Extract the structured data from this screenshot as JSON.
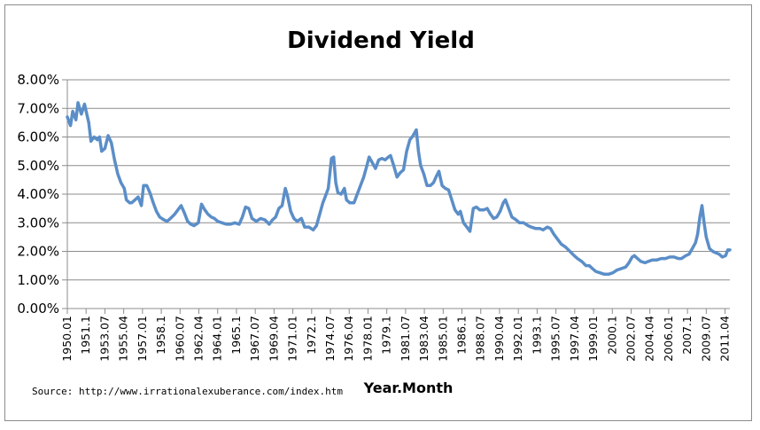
{
  "chart_data": {
    "type": "line",
    "title": "Dividend Yield",
    "xlabel": "Year.Month",
    "ylabel": "",
    "source": "Source: http://www.irrationalexuberance.com/index.htm",
    "ylim": [
      0,
      8
    ],
    "yticks": [
      0,
      1,
      2,
      3,
      4,
      5,
      6,
      7,
      8
    ],
    "ytick_labels": [
      "0.00%",
      "1.00%",
      "2.00%",
      "3.00%",
      "4.00%",
      "5.00%",
      "6.00%",
      "7.00%",
      "8.00%"
    ],
    "xlim": [
      1950.0,
      2011.7
    ],
    "xticks": [
      {
        "label": "1950.01",
        "x": 1950.0
      },
      {
        "label": "1951.1",
        "x": 1951.75
      },
      {
        "label": "1953.07",
        "x": 1953.5
      },
      {
        "label": "1955.04",
        "x": 1955.25
      },
      {
        "label": "1957.01",
        "x": 1957.0
      },
      {
        "label": "1958.1",
        "x": 1958.75
      },
      {
        "label": "1960.07",
        "x": 1960.5
      },
      {
        "label": "1962.04",
        "x": 1962.25
      },
      {
        "label": "1964.01",
        "x": 1964.0
      },
      {
        "label": "1965.1",
        "x": 1965.75
      },
      {
        "label": "1967.07",
        "x": 1967.5
      },
      {
        "label": "1969.04",
        "x": 1969.25
      },
      {
        "label": "1971.01",
        "x": 1971.0
      },
      {
        "label": "1972.1",
        "x": 1972.75
      },
      {
        "label": "1974.07",
        "x": 1974.5
      },
      {
        "label": "1976.04",
        "x": 1976.25
      },
      {
        "label": "1978.01",
        "x": 1978.0
      },
      {
        "label": "1979.1",
        "x": 1979.75
      },
      {
        "label": "1981.07",
        "x": 1981.5
      },
      {
        "label": "1983.04",
        "x": 1983.25
      },
      {
        "label": "1985.01",
        "x": 1985.0
      },
      {
        "label": "1986.1",
        "x": 1986.75
      },
      {
        "label": "1988.07",
        "x": 1988.5
      },
      {
        "label": "1990.04",
        "x": 1990.25
      },
      {
        "label": "1992.01",
        "x": 1992.0
      },
      {
        "label": "1993.1",
        "x": 1993.75
      },
      {
        "label": "1995.07",
        "x": 1995.5
      },
      {
        "label": "1997.04",
        "x": 1997.25
      },
      {
        "label": "1999.01",
        "x": 1999.0
      },
      {
        "label": "2000.1",
        "x": 2000.75
      },
      {
        "label": "2002.07",
        "x": 2002.5
      },
      {
        "label": "2004.04",
        "x": 2004.25
      },
      {
        "label": "2006.01",
        "x": 2006.0
      },
      {
        "label": "2007.1",
        "x": 2007.75
      },
      {
        "label": "2009.07",
        "x": 2009.5
      },
      {
        "label": "2011.04",
        "x": 2011.25
      }
    ],
    "grid": true,
    "legend": "none",
    "series": [
      {
        "name": "Dividend Yield",
        "color": "#5b8ec8",
        "points": [
          [
            1950.0,
            6.7
          ],
          [
            1950.3,
            6.4
          ],
          [
            1950.5,
            6.9
          ],
          [
            1950.8,
            6.6
          ],
          [
            1951.0,
            7.2
          ],
          [
            1951.3,
            6.8
          ],
          [
            1951.6,
            7.15
          ],
          [
            1952.0,
            6.5
          ],
          [
            1952.2,
            5.85
          ],
          [
            1952.5,
            6.0
          ],
          [
            1952.8,
            5.9
          ],
          [
            1953.0,
            6.0
          ],
          [
            1953.2,
            5.5
          ],
          [
            1953.5,
            5.6
          ],
          [
            1953.8,
            6.05
          ],
          [
            1954.1,
            5.8
          ],
          [
            1954.4,
            5.2
          ],
          [
            1954.7,
            4.7
          ],
          [
            1955.0,
            4.4
          ],
          [
            1955.3,
            4.2
          ],
          [
            1955.5,
            3.8
          ],
          [
            1955.8,
            3.7
          ],
          [
            1956.0,
            3.7
          ],
          [
            1956.3,
            3.8
          ],
          [
            1956.6,
            3.9
          ],
          [
            1956.9,
            3.6
          ],
          [
            1957.1,
            4.3
          ],
          [
            1957.4,
            4.3
          ],
          [
            1957.7,
            4.05
          ],
          [
            1958.0,
            3.7
          ],
          [
            1958.3,
            3.4
          ],
          [
            1958.6,
            3.2
          ],
          [
            1959.0,
            3.1
          ],
          [
            1959.3,
            3.05
          ],
          [
            1959.6,
            3.15
          ],
          [
            1960.0,
            3.3
          ],
          [
            1960.3,
            3.45
          ],
          [
            1960.6,
            3.6
          ],
          [
            1960.9,
            3.35
          ],
          [
            1961.2,
            3.05
          ],
          [
            1961.5,
            2.95
          ],
          [
            1961.8,
            2.9
          ],
          [
            1962.2,
            3.0
          ],
          [
            1962.5,
            3.65
          ],
          [
            1962.8,
            3.45
          ],
          [
            1963.1,
            3.3
          ],
          [
            1963.4,
            3.2
          ],
          [
            1963.7,
            3.15
          ],
          [
            1964.0,
            3.05
          ],
          [
            1964.4,
            3.0
          ],
          [
            1964.8,
            2.95
          ],
          [
            1965.2,
            2.95
          ],
          [
            1965.6,
            3.0
          ],
          [
            1966.0,
            2.95
          ],
          [
            1966.3,
            3.2
          ],
          [
            1966.6,
            3.55
          ],
          [
            1966.9,
            3.5
          ],
          [
            1967.2,
            3.15
          ],
          [
            1967.6,
            3.05
          ],
          [
            1968.0,
            3.15
          ],
          [
            1968.4,
            3.1
          ],
          [
            1968.8,
            2.95
          ],
          [
            1969.1,
            3.1
          ],
          [
            1969.4,
            3.2
          ],
          [
            1969.7,
            3.5
          ],
          [
            1970.0,
            3.6
          ],
          [
            1970.3,
            4.2
          ],
          [
            1970.5,
            3.95
          ],
          [
            1970.8,
            3.4
          ],
          [
            1971.1,
            3.15
          ],
          [
            1971.4,
            3.05
          ],
          [
            1971.8,
            3.15
          ],
          [
            1972.1,
            2.85
          ],
          [
            1972.5,
            2.85
          ],
          [
            1972.9,
            2.75
          ],
          [
            1973.2,
            2.9
          ],
          [
            1973.5,
            3.3
          ],
          [
            1973.8,
            3.7
          ],
          [
            1974.0,
            3.9
          ],
          [
            1974.3,
            4.2
          ],
          [
            1974.6,
            5.25
          ],
          [
            1974.8,
            5.3
          ],
          [
            1975.0,
            4.4
          ],
          [
            1975.2,
            4.05
          ],
          [
            1975.5,
            4.0
          ],
          [
            1975.8,
            4.2
          ],
          [
            1976.0,
            3.8
          ],
          [
            1976.3,
            3.7
          ],
          [
            1976.7,
            3.7
          ],
          [
            1977.0,
            4.0
          ],
          [
            1977.3,
            4.3
          ],
          [
            1977.6,
            4.6
          ],
          [
            1977.9,
            5.0
          ],
          [
            1978.1,
            5.3
          ],
          [
            1978.4,
            5.1
          ],
          [
            1978.7,
            4.9
          ],
          [
            1979.0,
            5.2
          ],
          [
            1979.3,
            5.25
          ],
          [
            1979.6,
            5.2
          ],
          [
            1979.9,
            5.3
          ],
          [
            1980.1,
            5.35
          ],
          [
            1980.4,
            5.0
          ],
          [
            1980.7,
            4.6
          ],
          [
            1981.0,
            4.75
          ],
          [
            1981.3,
            4.85
          ],
          [
            1981.6,
            5.5
          ],
          [
            1981.9,
            5.9
          ],
          [
            1982.2,
            6.05
          ],
          [
            1982.5,
            6.25
          ],
          [
            1982.7,
            5.5
          ],
          [
            1982.9,
            5.0
          ],
          [
            1983.2,
            4.7
          ],
          [
            1983.5,
            4.3
          ],
          [
            1983.8,
            4.3
          ],
          [
            1984.1,
            4.4
          ],
          [
            1984.4,
            4.65
          ],
          [
            1984.6,
            4.8
          ],
          [
            1984.9,
            4.3
          ],
          [
            1985.2,
            4.2
          ],
          [
            1985.5,
            4.15
          ],
          [
            1985.8,
            3.8
          ],
          [
            1986.1,
            3.45
          ],
          [
            1986.4,
            3.3
          ],
          [
            1986.6,
            3.4
          ],
          [
            1986.9,
            3.0
          ],
          [
            1987.2,
            2.85
          ],
          [
            1987.5,
            2.7
          ],
          [
            1987.8,
            3.5
          ],
          [
            1988.1,
            3.55
          ],
          [
            1988.4,
            3.45
          ],
          [
            1988.8,
            3.45
          ],
          [
            1989.1,
            3.5
          ],
          [
            1989.4,
            3.3
          ],
          [
            1989.7,
            3.15
          ],
          [
            1990.0,
            3.2
          ],
          [
            1990.3,
            3.4
          ],
          [
            1990.6,
            3.7
          ],
          [
            1990.8,
            3.8
          ],
          [
            1991.1,
            3.5
          ],
          [
            1991.4,
            3.2
          ],
          [
            1991.8,
            3.1
          ],
          [
            1992.1,
            3.0
          ],
          [
            1992.5,
            3.0
          ],
          [
            1992.9,
            2.9
          ],
          [
            1993.2,
            2.85
          ],
          [
            1993.6,
            2.8
          ],
          [
            1994.0,
            2.8
          ],
          [
            1994.3,
            2.75
          ],
          [
            1994.7,
            2.85
          ],
          [
            1995.0,
            2.8
          ],
          [
            1995.3,
            2.6
          ],
          [
            1995.7,
            2.4
          ],
          [
            1996.0,
            2.25
          ],
          [
            1996.4,
            2.15
          ],
          [
            1996.8,
            2.0
          ],
          [
            1997.2,
            1.85
          ],
          [
            1997.5,
            1.75
          ],
          [
            1997.9,
            1.65
          ],
          [
            1998.3,
            1.5
          ],
          [
            1998.6,
            1.5
          ],
          [
            1998.9,
            1.4
          ],
          [
            1999.2,
            1.3
          ],
          [
            1999.6,
            1.25
          ],
          [
            2000.0,
            1.2
          ],
          [
            2000.4,
            1.2
          ],
          [
            2000.8,
            1.25
          ],
          [
            2001.2,
            1.35
          ],
          [
            2001.6,
            1.4
          ],
          [
            2002.0,
            1.45
          ],
          [
            2002.3,
            1.6
          ],
          [
            2002.6,
            1.8
          ],
          [
            2002.8,
            1.85
          ],
          [
            2003.1,
            1.75
          ],
          [
            2003.4,
            1.65
          ],
          [
            2003.8,
            1.6
          ],
          [
            2004.1,
            1.65
          ],
          [
            2004.5,
            1.7
          ],
          [
            2004.9,
            1.7
          ],
          [
            2005.3,
            1.75
          ],
          [
            2005.7,
            1.75
          ],
          [
            2006.1,
            1.8
          ],
          [
            2006.5,
            1.8
          ],
          [
            2006.9,
            1.75
          ],
          [
            2007.2,
            1.75
          ],
          [
            2007.6,
            1.85
          ],
          [
            2007.9,
            1.9
          ],
          [
            2008.2,
            2.1
          ],
          [
            2008.5,
            2.3
          ],
          [
            2008.7,
            2.6
          ],
          [
            2008.9,
            3.2
          ],
          [
            2009.1,
            3.6
          ],
          [
            2009.3,
            3.0
          ],
          [
            2009.5,
            2.5
          ],
          [
            2009.8,
            2.1
          ],
          [
            2010.1,
            2.0
          ],
          [
            2010.4,
            1.95
          ],
          [
            2010.7,
            1.9
          ],
          [
            2011.0,
            1.8
          ],
          [
            2011.3,
            1.85
          ],
          [
            2011.5,
            2.05
          ],
          [
            2011.7,
            2.05
          ]
        ]
      }
    ]
  }
}
